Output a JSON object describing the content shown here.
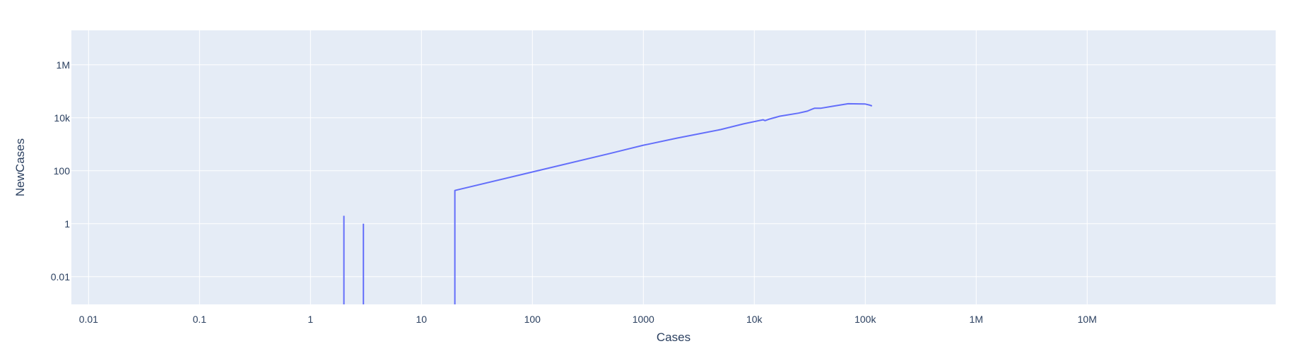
{
  "chart_data": {
    "type": "line",
    "title": "",
    "xlabel": "Cases",
    "ylabel": "NewCases",
    "xscale": "log",
    "yscale": "log",
    "xlim": [
      0.007,
      500000000
    ],
    "ylim": [
      0.0009,
      20000000
    ],
    "grid": true,
    "legend": "none",
    "colors": {
      "plot_background": "#e5ecf6",
      "gridline": "#ffffff",
      "line": "#636efa",
      "text": "#2a3f5f"
    },
    "x_ticks": [
      {
        "value": 0.01,
        "label": "0.01"
      },
      {
        "value": 0.1,
        "label": "0.1"
      },
      {
        "value": 1,
        "label": "1"
      },
      {
        "value": 10,
        "label": "10"
      },
      {
        "value": 100,
        "label": "100"
      },
      {
        "value": 1000,
        "label": "1000"
      },
      {
        "value": 10000,
        "label": "10k"
      },
      {
        "value": 100000,
        "label": "100k"
      },
      {
        "value": 1000000,
        "label": "1M"
      },
      {
        "value": 10000000,
        "label": "10M"
      }
    ],
    "y_ticks": [
      {
        "value": 0.01,
        "label": "0.01"
      },
      {
        "value": 1,
        "label": "1"
      },
      {
        "value": 100,
        "label": "100"
      },
      {
        "value": 10000,
        "label": "10k"
      },
      {
        "value": 1000000,
        "label": "1M"
      }
    ],
    "segments": [
      {
        "points": [
          [
            2,
            0.0009
          ],
          [
            2,
            2
          ]
        ]
      },
      {
        "points": [
          [
            3,
            0.0009
          ],
          [
            3,
            1
          ]
        ]
      },
      {
        "points": [
          [
            20,
            0.0009
          ],
          [
            20,
            18
          ],
          [
            100,
            90
          ],
          [
            500,
            450
          ],
          [
            1000,
            920
          ],
          [
            1100,
            1000
          ],
          [
            2000,
            1700
          ],
          [
            5000,
            3600
          ],
          [
            8000,
            5900
          ],
          [
            11000,
            7800
          ],
          [
            12000,
            8400
          ],
          [
            12500,
            7800
          ],
          [
            13500,
            8800
          ],
          [
            17000,
            11500
          ],
          [
            25000,
            15000
          ],
          [
            30000,
            17800
          ],
          [
            33000,
            21000
          ],
          [
            35000,
            23000
          ],
          [
            40000,
            23000
          ],
          [
            50000,
            27000
          ],
          [
            70000,
            34000
          ],
          [
            100000,
            33000
          ],
          [
            110000,
            30000
          ],
          [
            115000,
            28000
          ]
        ]
      }
    ]
  }
}
